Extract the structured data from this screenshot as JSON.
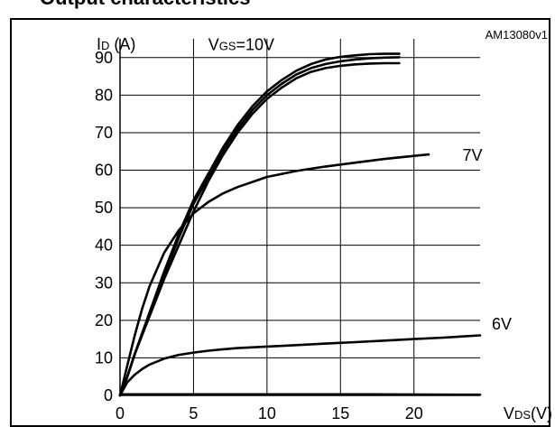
{
  "header": {
    "text": "Output characteristics"
  },
  "figure_code": "AM13080v1",
  "chart_data": {
    "type": "line",
    "ylabel": "ID (A)",
    "xlabel": "VDS(V)",
    "xlim": [
      0,
      24.5
    ],
    "ylim": [
      0,
      95
    ],
    "x_ticks": [
      0,
      5,
      10,
      15,
      20
    ],
    "y_ticks": [
      0,
      10,
      20,
      30,
      40,
      50,
      60,
      70,
      80,
      90
    ],
    "grid": true,
    "annotations": [
      {
        "label": "VGS=10V",
        "x": 6.0,
        "y": 92.0
      },
      {
        "label": "7V",
        "x": 23.3,
        "y": 62.5
      },
      {
        "label": "6V",
        "x": 25.3,
        "y": 17.5
      }
    ],
    "series": [
      {
        "x": [
          0,
          0.5,
          1,
          2,
          3,
          4,
          5,
          6,
          7,
          8,
          9,
          10,
          11,
          12,
          13,
          14,
          15,
          16,
          17,
          18,
          19
        ],
        "y": [
          0,
          5,
          11,
          22,
          33,
          43,
          52,
          59,
          66,
          72,
          77,
          81,
          84,
          86.5,
          88.3,
          89.5,
          90.2,
          90.6,
          90.9,
          91.0,
          91.0
        ]
      },
      {
        "x": [
          0,
          0.5,
          1,
          2,
          3,
          4,
          5,
          6,
          7,
          8,
          9,
          10,
          11,
          12,
          13,
          14,
          15,
          16,
          17,
          18,
          19
        ],
        "y": [
          0,
          5,
          11,
          22,
          32,
          42,
          51,
          58,
          65,
          71,
          76,
          80,
          83,
          85.5,
          87.2,
          88.3,
          89.0,
          89.5,
          89.8,
          90.0,
          90.1
        ]
      },
      {
        "x": [
          0,
          0.5,
          1,
          2,
          3,
          4,
          5,
          6,
          7,
          8,
          9,
          10,
          11,
          12,
          13,
          14,
          15,
          16,
          17,
          18,
          19
        ],
        "y": [
          0,
          5,
          11,
          21,
          31,
          40,
          49,
          57,
          64,
          70,
          75,
          79,
          82,
          84.5,
          86.2,
          87.2,
          87.8,
          88.2,
          88.4,
          88.5,
          88.5
        ]
      },
      {
        "x": [
          0,
          0.5,
          1,
          1.5,
          2,
          3,
          4,
          5,
          6,
          7,
          8,
          10,
          12,
          14,
          16,
          18,
          20,
          21
        ],
        "y": [
          0,
          8,
          16,
          23,
          29,
          38,
          44,
          48.5,
          51.5,
          53.8,
          55.5,
          58.2,
          59.8,
          61.0,
          62.0,
          63.0,
          63.8,
          64.2
        ]
      },
      {
        "x": [
          0,
          0.5,
          1,
          1.5,
          2,
          3,
          4,
          5,
          6,
          7,
          8,
          10,
          12,
          14,
          16,
          18,
          20,
          22,
          24.5
        ],
        "y": [
          0,
          3.5,
          5.5,
          7,
          8.2,
          9.8,
          10.8,
          11.4,
          11.9,
          12.3,
          12.6,
          13.0,
          13.4,
          13.8,
          14.2,
          14.6,
          15.0,
          15.4,
          16.0
        ]
      },
      {
        "x": [
          0,
          1,
          5,
          10,
          17,
          24.5
        ],
        "y": [
          0.3,
          0.3,
          0.3,
          0.3,
          0.3,
          0.2
        ]
      }
    ]
  }
}
